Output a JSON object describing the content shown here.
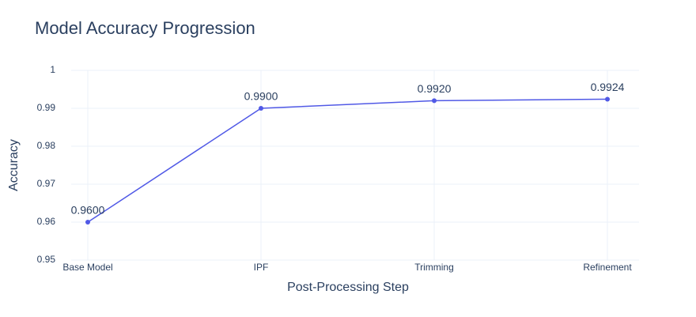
{
  "chart_data": {
    "type": "line",
    "title": "Model Accuracy Progression",
    "x_label": "Post-Processing Step",
    "y_label": "Accuracy",
    "categories": [
      "Base Model",
      "IPF",
      "Trimming",
      "Refinement"
    ],
    "series": [
      {
        "name": "Accuracy",
        "color": "#5059e6",
        "values": [
          0.96,
          0.99,
          0.992,
          0.9924
        ],
        "value_labels": [
          "0.9600",
          "0.9900",
          "0.9920",
          "0.9924"
        ]
      }
    ],
    "ylim": [
      0.95,
      1
    ],
    "yticks": [
      0.95,
      0.96,
      0.97,
      0.98,
      0.99,
      1
    ],
    "grid": true
  }
}
